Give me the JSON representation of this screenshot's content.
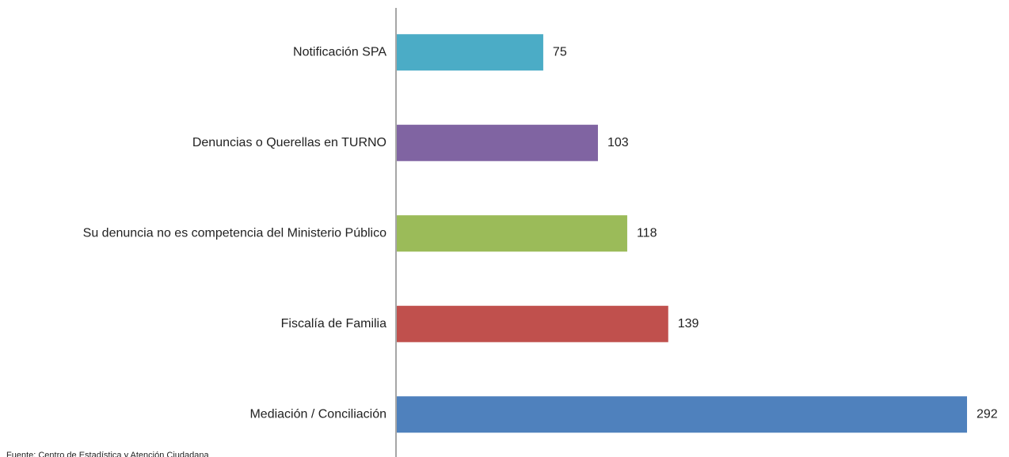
{
  "chart_data": {
    "type": "bar",
    "orientation": "horizontal",
    "categories": [
      "Notificación SPA",
      "Denuncias o Querellas en TURNO",
      "Su denuncia no es competencia del Ministerio Público",
      "Fiscalía de Familia",
      "Mediación / Conciliación"
    ],
    "values": [
      75,
      103,
      118,
      139,
      292
    ],
    "colors": [
      "#4bacc6",
      "#8064a2",
      "#9bbb59",
      "#c0504d",
      "#4f81bd"
    ],
    "source": "Fuente: Centro de Estadística y Atención Ciudadana"
  }
}
